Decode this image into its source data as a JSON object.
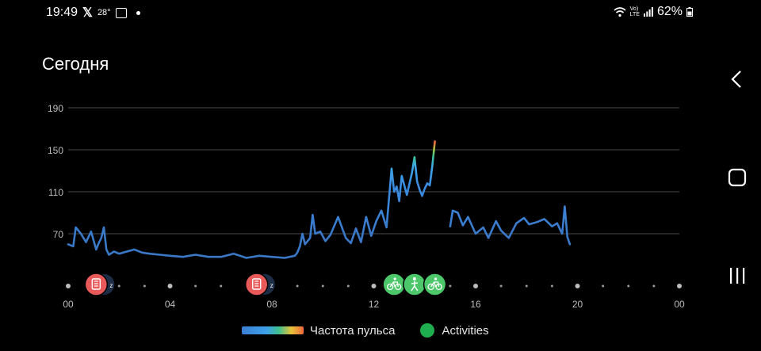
{
  "status_bar": {
    "time": "19:49",
    "temperature": "28°",
    "battery": "62%",
    "network_label_top": "Vo)",
    "network_label_bottom": "LTE"
  },
  "page": {
    "title": "Сегодня"
  },
  "legend": {
    "heart_rate_label": "Частота пульса",
    "activities_label": "Activities",
    "activities_color": "#1fae4f"
  },
  "markers": [
    {
      "type": "sleep-report",
      "x_hour": 1.1,
      "color": "#e85a5a"
    },
    {
      "type": "sleep-report",
      "x_hour": 7.4,
      "color": "#e85a5a"
    },
    {
      "type": "cycling",
      "x_hour": 12.8,
      "color": "#4cc76a"
    },
    {
      "type": "walking",
      "x_hour": 13.6,
      "color": "#4cc76a"
    },
    {
      "type": "cycling",
      "x_hour": 14.4,
      "color": "#4cc76a"
    }
  ],
  "chart_data": {
    "type": "line",
    "title": "",
    "xlabel": "",
    "ylabel": "",
    "x_ticks": [
      "00",
      "04",
      "08",
      "12",
      "16",
      "20",
      "00"
    ],
    "y_ticks": [
      "70",
      "110",
      "150",
      "190"
    ],
    "xlim": [
      0,
      24
    ],
    "ylim": [
      35,
      190
    ],
    "grid": true,
    "series": [
      {
        "name": "Частота пульса",
        "segments": [
          {
            "x": [
              0,
              0.2,
              0.3,
              0.5,
              0.7,
              0.9,
              1.1,
              1.2,
              1.3,
              1.4,
              1.5,
              1.6,
              1.8,
              2.0,
              2.3,
              2.6,
              2.9,
              3.2,
              3.6,
              4.0,
              4.5,
              5.0,
              5.5,
              6.0,
              6.5,
              7.0,
              7.5,
              8.0,
              8.5,
              8.9,
              9.0,
              9.1,
              9.2,
              9.3,
              9.5,
              9.6,
              9.7,
              9.9,
              10.1,
              10.3,
              10.6,
              10.9,
              11.1,
              11.3,
              11.5,
              11.7,
              11.9,
              12.1,
              12.3,
              12.5,
              12.7,
              12.8,
              12.9,
              13.0,
              13.1,
              13.3,
              13.5,
              13.6,
              13.7,
              13.8,
              13.9,
              14.0,
              14.1,
              14.2,
              14.3,
              14.4
            ],
            "y": [
              60,
              58,
              76,
              70,
              62,
              72,
              55,
              61,
              66,
              76,
              55,
              50,
              53,
              51,
              53,
              55,
              52,
              51,
              50,
              49,
              48,
              50,
              48,
              48,
              51,
              47,
              49,
              48,
              47,
              49,
              52,
              58,
              70,
              60,
              66,
              88,
              70,
              72,
              63,
              69,
              86,
              66,
              61,
              75,
              62,
              86,
              68,
              82,
              92,
              76,
              132,
              110,
              115,
              101,
              125,
              107,
              128,
              143,
              120,
              112,
              106,
              113,
              118,
              116,
              135,
              158
            ]
          },
          {
            "x": [
              15.0,
              15.1,
              15.3,
              15.5,
              15.7,
              16.0,
              16.3,
              16.5,
              16.8,
              17.0,
              17.3,
              17.6,
              17.9,
              18.1,
              18.4,
              18.7,
              19.0,
              19.2,
              19.4,
              19.5,
              19.6,
              19.7
            ],
            "y": [
              77,
              92,
              90,
              78,
              86,
              70,
              76,
              66,
              82,
              73,
              66,
              80,
              85,
              79,
              81,
              84,
              77,
              80,
              70,
              96,
              67,
              60
            ]
          }
        ]
      }
    ]
  }
}
